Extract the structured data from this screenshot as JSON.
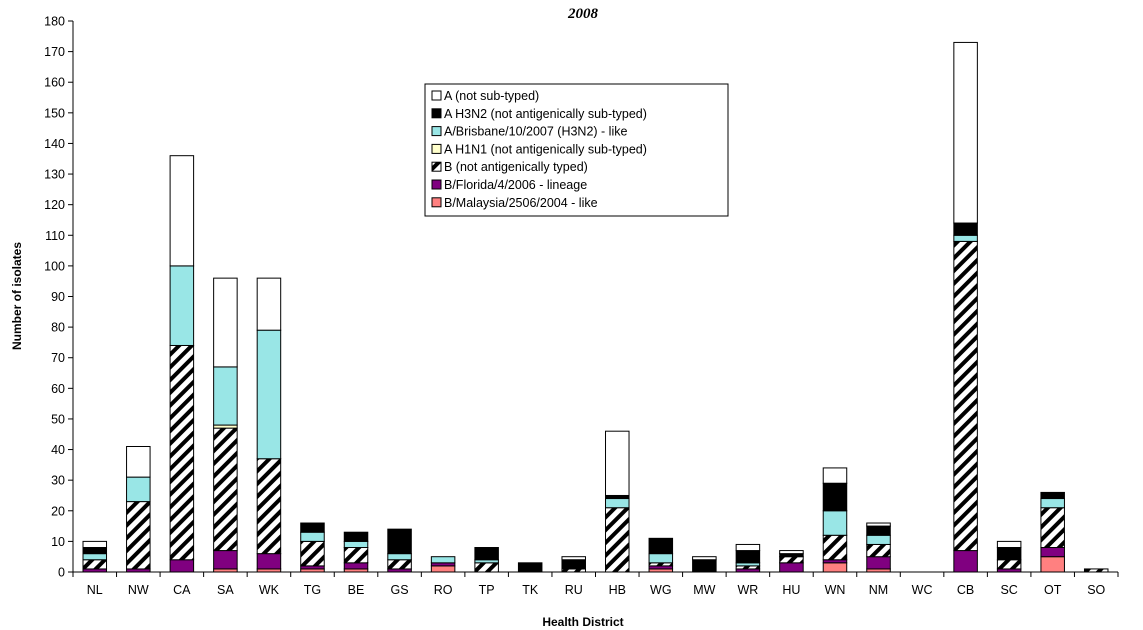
{
  "chart_data": {
    "type": "bar",
    "stacked": true,
    "title": "2008",
    "xlabel": "Health District",
    "ylabel": "Number of isolates",
    "ylim": [
      0,
      180
    ],
    "ytick_step": 10,
    "grid": false,
    "legend_position": "top-center",
    "categories": [
      "NL",
      "NW",
      "CA",
      "SA",
      "WK",
      "TG",
      "BE",
      "GS",
      "RO",
      "TP",
      "TK",
      "RU",
      "HB",
      "WG",
      "MW",
      "WR",
      "HU",
      "WN",
      "NM",
      "WC",
      "CB",
      "SC",
      "OT",
      "SO"
    ],
    "series": [
      {
        "name": "B/Malaysia/2506/2004 - like",
        "color": "#ff8080",
        "pattern": "solid",
        "values": [
          0,
          0,
          0,
          1,
          1,
          1,
          1,
          0,
          2,
          0,
          0,
          0,
          0,
          1,
          0,
          0,
          0,
          3,
          1,
          0,
          0,
          0,
          5,
          0
        ]
      },
      {
        "name": "B/Florida/4/2006 - lineage",
        "color": "#800080",
        "pattern": "solid",
        "values": [
          1,
          1,
          4,
          6,
          5,
          1,
          2,
          1,
          1,
          0,
          0,
          0,
          0,
          1,
          0,
          1,
          3,
          1,
          4,
          0,
          7,
          1,
          3,
          0
        ]
      },
      {
        "name": "B (not antigenically typed)",
        "color": "#000000",
        "pattern": "diagonal-stripes",
        "values": [
          3,
          22,
          70,
          40,
          31,
          8,
          5,
          3,
          0,
          3,
          0,
          1,
          21,
          1,
          0,
          1,
          2,
          8,
          4,
          0,
          101,
          3,
          13,
          1
        ]
      },
      {
        "name": "A H1N1 (not antigenically sub-typed)",
        "color": "#ffffcc",
        "pattern": "solid",
        "values": [
          0,
          0,
          0,
          1,
          0,
          0,
          0,
          0,
          0,
          0,
          0,
          0,
          0,
          0,
          0,
          0,
          0,
          0,
          0,
          0,
          0,
          0,
          0,
          0
        ]
      },
      {
        "name": "A/Brisbane/10/2007 (H3N2) - like",
        "color": "#99e6e6",
        "pattern": "solid",
        "values": [
          2,
          8,
          26,
          19,
          42,
          3,
          2,
          2,
          2,
          1,
          0,
          0,
          3,
          3,
          0,
          1,
          0,
          8,
          3,
          0,
          2,
          0,
          3,
          0
        ]
      },
      {
        "name": "A H3N2 (not antigenically sub-typed)",
        "color": "#000000",
        "pattern": "solid",
        "values": [
          2,
          0,
          0,
          0,
          0,
          3,
          3,
          8,
          0,
          4,
          3,
          3,
          1,
          5,
          4,
          4,
          1,
          9,
          3,
          0,
          4,
          4,
          2,
          0
        ]
      },
      {
        "name": "A (not sub-typed)",
        "color": "#ffffff",
        "pattern": "solid",
        "values": [
          2,
          10,
          36,
          29,
          17,
          0,
          0,
          0,
          0,
          0,
          0,
          1,
          21,
          0,
          1,
          2,
          1,
          5,
          1,
          0,
          59,
          2,
          0,
          0
        ]
      }
    ],
    "legend_order": [
      "A (not sub-typed)",
      "A H3N2 (not antigenically sub-typed)",
      "A/Brisbane/10/2007 (H3N2) - like",
      "A H1N1 (not antigenically sub-typed)",
      "B (not antigenically typed)",
      "B/Florida/4/2006 - lineage",
      "B/Malaysia/2506/2004 - like"
    ]
  }
}
